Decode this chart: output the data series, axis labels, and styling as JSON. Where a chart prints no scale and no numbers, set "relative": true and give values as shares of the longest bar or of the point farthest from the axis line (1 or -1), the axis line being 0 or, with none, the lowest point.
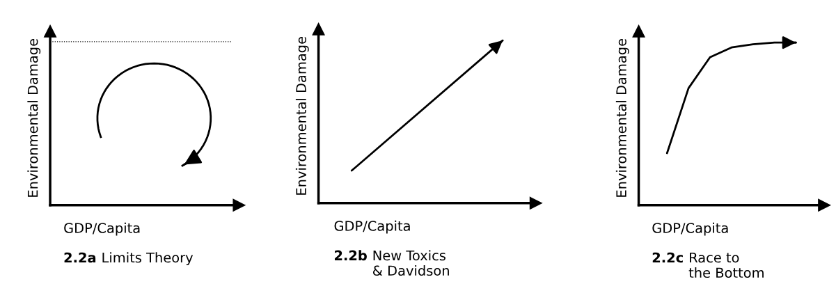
{
  "chart_data": [
    {
      "type": "other",
      "title": "2.2a",
      "subtitle": "Limits Theory",
      "xlabel": "GDP/Capita",
      "ylabel": "Environmental Damage"
    },
    {
      "type": "line",
      "relative": true,
      "title": "2.2b",
      "subtitle": "New Toxics\n& Davidson",
      "xlabel": "GDP/Capita",
      "ylabel": "Environmental Damage",
      "tick_labels": false,
      "marker": "none",
      "line_style": "solid",
      "categories": [
        null,
        null
      ],
      "series": [
        {
          "color": "#000000",
          "values": [
            0.2,
            1
          ]
        }
      ]
    },
    {
      "type": "line",
      "relative": true,
      "title": "2.2c",
      "subtitle": "Race to\nthe Bottom",
      "xlabel": "GDP/Capita",
      "ylabel": "Environmental Damage",
      "tick_labels": false,
      "marker": "none",
      "line_style": "solid",
      "categories": [
        null,
        null,
        null,
        null,
        null,
        null,
        null
      ],
      "series": [
        {
          "color": "#000000",
          "values": [
            0.32,
            0.72,
            0.91,
            0.97,
            0.99,
            1,
            1
          ]
        }
      ]
    }
  ]
}
